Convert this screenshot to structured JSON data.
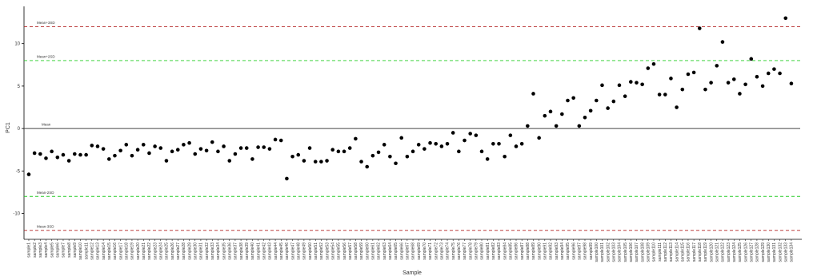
{
  "chart_data": {
    "type": "scatter",
    "x_label": "Sample",
    "y_label": "PC1",
    "color": "#000000",
    "categories": [
      "sample1",
      "sample2",
      "sample3",
      "sample4",
      "sample5",
      "sample6",
      "sample7",
      "sample8",
      "sample9",
      "sample10",
      "sample11",
      "sample12",
      "sample13",
      "sample14",
      "sample15",
      "sample16",
      "sample17",
      "sample18",
      "sample19",
      "sample20",
      "sample21",
      "sample22",
      "sample23",
      "sample24",
      "sample25",
      "sample26",
      "sample27",
      "sample28",
      "sample29",
      "sample30",
      "sample31",
      "sample32",
      "sample33",
      "sample34",
      "sample35",
      "sample36",
      "sample37",
      "sample38",
      "sample39",
      "sample40",
      "sample41",
      "sample42",
      "sample43",
      "sample44",
      "sample45",
      "sample46",
      "sample47",
      "sample48",
      "sample49",
      "sample50",
      "sample51",
      "sample52",
      "sample53",
      "sample54",
      "sample55",
      "sample56",
      "sample57",
      "sample58",
      "sample59",
      "sample60",
      "sample61",
      "sample62",
      "sample63",
      "sample64",
      "sample65",
      "sample66",
      "sample67",
      "sample68",
      "sample69",
      "sample70",
      "sample71",
      "sample72",
      "sample73",
      "sample74",
      "sample75",
      "sample76",
      "sample77",
      "sample78",
      "sample79",
      "sample80",
      "sample81",
      "sample82",
      "sample83",
      "sample84",
      "sample85",
      "sample86",
      "sample87",
      "sample88",
      "sample89",
      "sample90",
      "sample91",
      "sample92",
      "sample93",
      "sample94",
      "sample95",
      "sample96",
      "sample97",
      "sample98",
      "sample99",
      "sample100",
      "sample101",
      "sample102",
      "sample103",
      "sample104",
      "sample105",
      "sample106",
      "sample107",
      "sample108",
      "sample109",
      "sample110",
      "sample111",
      "sample112",
      "sample113",
      "sample114",
      "sample115",
      "sample116",
      "sample117",
      "sample118",
      "sample119",
      "sample120",
      "sample121",
      "sample122",
      "sample123",
      "sample124",
      "sample125",
      "sample126",
      "sample127",
      "sample128",
      "sample129",
      "sample130",
      "sample131",
      "sample132",
      "sample133",
      "sample134"
    ],
    "values": [
      -5.4,
      -2.9,
      -3.0,
      -3.5,
      -2.7,
      -3.4,
      -3.1,
      -3.8,
      -3.0,
      -3.1,
      -3.1,
      -2.0,
      -2.1,
      -2.4,
      -3.6,
      -3.2,
      -2.6,
      -1.9,
      -3.2,
      -2.5,
      -1.9,
      -2.9,
      -2.1,
      -2.3,
      -3.8,
      -2.7,
      -2.5,
      -1.9,
      -1.7,
      -3.0,
      -2.4,
      -2.6,
      -1.6,
      -2.7,
      -2.1,
      -3.8,
      -3.0,
      -2.3,
      -2.3,
      -3.6,
      -2.2,
      -2.2,
      -2.4,
      -1.3,
      -1.4,
      -5.9,
      -3.3,
      -3.1,
      -3.8,
      -2.3,
      -3.9,
      -3.9,
      -3.8,
      -2.5,
      -2.7,
      -2.7,
      -2.3,
      -1.2,
      -3.9,
      -4.5,
      -3.2,
      -2.8,
      -1.9,
      -3.3,
      -4.1,
      -1.1,
      -3.3,
      -2.7,
      -1.9,
      -2.4,
      -1.7,
      -1.8,
      -2.1,
      -1.8,
      -0.5,
      -2.7,
      -1.4,
      -0.6,
      -0.8,
      -2.7,
      -3.6,
      -1.8,
      -1.8,
      -3.3,
      -0.8,
      -2.1,
      -1.8,
      0.3,
      4.1,
      -1.1,
      1.5,
      2.0,
      0.3,
      1.7,
      3.3,
      3.6,
      0.3,
      1.3,
      2.1,
      3.3,
      5.1,
      2.4,
      3.2,
      5.1,
      3.8,
      5.5,
      5.4,
      5.2,
      7.1,
      7.6,
      4.0,
      4.0,
      5.9,
      2.5,
      4.6,
      6.4,
      6.6,
      11.8,
      4.6,
      5.4,
      7.4,
      10.2,
      5.4,
      5.8,
      4.1,
      5.2,
      8.2,
      6.1,
      5.0,
      6.5,
      7.0,
      6.5,
      13.0,
      5.3
    ],
    "ylim": [
      -13.05,
      14.2
    ],
    "yticks": [
      -10,
      -5,
      0,
      5,
      10
    ],
    "reference_lines": [
      {
        "label": "Mean+3SD",
        "value": 12,
        "color": "#b22222",
        "style": "dashed"
      },
      {
        "label": "Mean+2SD",
        "value": 8,
        "color": "#22cc22",
        "style": "dashed"
      },
      {
        "label": "Mean",
        "value": 0,
        "color": "#444444",
        "style": "solid"
      },
      {
        "label": "Mean-2SD",
        "value": -8,
        "color": "#22cc22",
        "style": "dashed"
      },
      {
        "label": "Mean-3SD",
        "value": -12,
        "color": "#b22222",
        "style": "dashed"
      }
    ]
  }
}
